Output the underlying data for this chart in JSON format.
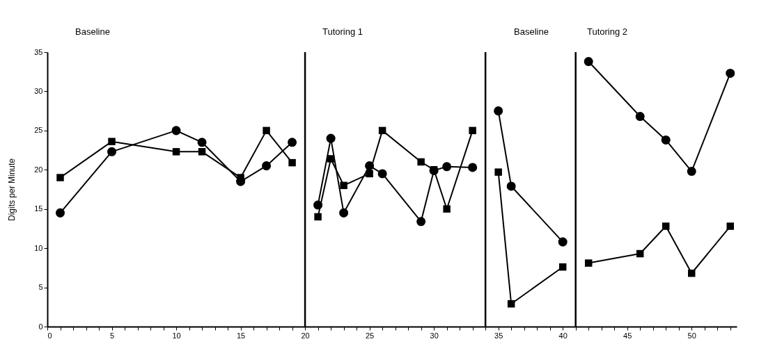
{
  "chart_data": {
    "type": "line",
    "ylabel": "Digits per Minute",
    "annotations": [
      "Baseline",
      "Tutoring 1",
      "Baseline",
      "Tutoring 2"
    ],
    "xlim": [
      0,
      53.5
    ],
    "ylim": [
      0,
      35
    ],
    "xticks": [
      0,
      {
        "value": 1,
        "label": null
      },
      {
        "value": 2,
        "label": null
      },
      {
        "value": 3,
        "label": null
      },
      {
        "value": 4,
        "label": null
      },
      5,
      {
        "value": 6,
        "label": null
      },
      {
        "value": 7,
        "label": null
      },
      {
        "value": 8,
        "label": null
      },
      {
        "value": 9,
        "label": null
      },
      10,
      {
        "value": 11,
        "label": null
      },
      {
        "value": 12,
        "label": null
      },
      {
        "value": 13,
        "label": null
      },
      {
        "value": 14,
        "label": null
      },
      15,
      {
        "value": 16,
        "label": null
      },
      {
        "value": 17,
        "label": null
      },
      {
        "value": 18,
        "label": null
      },
      {
        "value": 19,
        "label": null
      },
      20,
      {
        "value": 21,
        "label": null
      },
      {
        "value": 22,
        "label": null
      },
      {
        "value": 23,
        "label": null
      },
      {
        "value": 24,
        "label": null
      },
      25,
      {
        "value": 26,
        "label": null
      },
      {
        "value": 27,
        "label": null
      },
      {
        "value": 28,
        "label": null
      },
      {
        "value": 29,
        "label": null
      },
      30,
      {
        "value": 31,
        "label": null
      },
      {
        "value": 32,
        "label": null
      },
      {
        "value": 33,
        "label": null
      },
      {
        "value": 34,
        "label": null
      },
      35,
      {
        "value": 36,
        "label": null
      },
      {
        "value": 37,
        "label": null
      },
      {
        "value": 38,
        "label": null
      },
      {
        "value": 39,
        "label": null
      },
      40,
      {
        "value": 41,
        "label": null
      },
      {
        "value": 42,
        "label": null
      },
      {
        "value": 43,
        "label": null
      },
      {
        "value": 44,
        "label": null
      },
      45,
      {
        "value": 46,
        "label": null
      },
      {
        "value": 47,
        "label": null
      },
      {
        "value": 48,
        "label": null
      },
      {
        "value": 49,
        "label": null
      },
      50,
      {
        "value": 51,
        "label": null
      },
      {
        "value": 52,
        "label": null
      },
      {
        "value": 53,
        "label": null
      }
    ],
    "yticks": [
      0,
      5,
      10,
      15,
      20,
      25,
      30,
      35
    ],
    "grid": false,
    "line_style": "solid",
    "ref_lines": [
      {
        "axis": "x",
        "value": 20,
        "label": null,
        "color": "#000000"
      },
      {
        "axis": "x",
        "value": 34,
        "label": null,
        "color": "#000000"
      },
      {
        "axis": "x",
        "value": 41,
        "label": null,
        "color": "#000000"
      }
    ],
    "series": [
      {
        "color": "#000000",
        "marker": "circle",
        "x": [
          1,
          5,
          10,
          12,
          15,
          17,
          19,
          20,
          21,
          22,
          23,
          25,
          26,
          29,
          30,
          31,
          33,
          34,
          35,
          36,
          40,
          41,
          42,
          46,
          48,
          50,
          53
        ],
        "values": [
          14.5,
          22.3,
          25,
          23.5,
          18.5,
          20.5,
          23.5,
          null,
          15.5,
          24,
          14.5,
          20.5,
          19.5,
          13.4,
          19.9,
          20.4,
          20.3,
          null,
          27.5,
          17.9,
          10.8,
          null,
          33.8,
          26.8,
          23.8,
          19.8,
          32.3
        ]
      },
      {
        "color": "#000000",
        "marker": "square",
        "x": [
          1,
          5,
          10,
          12,
          15,
          17,
          19,
          20,
          21,
          22,
          23,
          25,
          26,
          29,
          30,
          31,
          33,
          34,
          35,
          36,
          40,
          41,
          42,
          46,
          48,
          50,
          53
        ],
        "values": [
          19,
          23.6,
          22.3,
          22.3,
          19,
          25,
          20.9,
          null,
          14,
          21.4,
          18,
          19.5,
          25,
          21,
          20,
          15,
          25,
          null,
          19.7,
          2.9,
          7.6,
          null,
          8.1,
          9.3,
          12.8,
          6.8,
          12.8
        ]
      }
    ]
  }
}
